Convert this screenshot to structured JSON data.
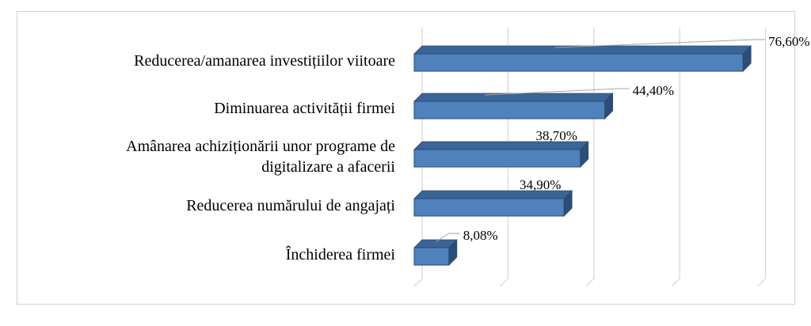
{
  "chart_data": {
    "type": "bar",
    "orientation": "horizontal",
    "style": "3d",
    "title": "",
    "xlabel": "",
    "ylabel": "",
    "categories": [
      [
        "Reducerea/amanarea investițiilor viitoare"
      ],
      [
        "Diminuarea activității firmei"
      ],
      [
        "Amânarea achiziționării unor programe de",
        "digitalizare a afacerii"
      ],
      [
        "Reducerea numărului de angajați"
      ],
      [
        "Închiderea firmei"
      ]
    ],
    "values": [
      76.6,
      44.4,
      38.7,
      34.9,
      8.08
    ],
    "data_labels": [
      "76,60%",
      "44,40%",
      "38,70%",
      "34,90%",
      "8,08%"
    ],
    "xlim": [
      0,
      80
    ],
    "grid": true,
    "legend": "none",
    "tick_labels_shown": false,
    "colors": {
      "bar_front": "#4f81bd",
      "bar_top": "#3c6496",
      "bar_side": "#2c4d75",
      "bar_edge": "#2a4a72",
      "grid": "#d9d9d9",
      "leader": "#a6a6a6",
      "frame": "#d0d0d0"
    }
  }
}
